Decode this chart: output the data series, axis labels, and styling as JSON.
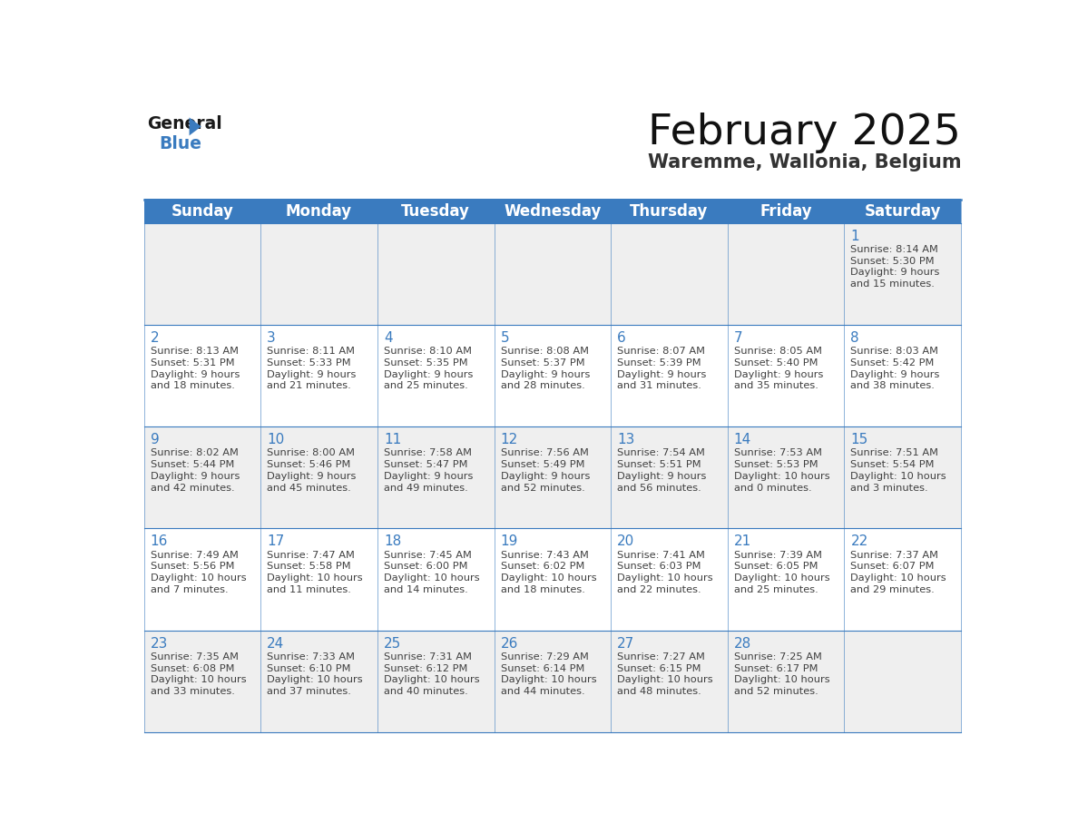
{
  "title": "February 2025",
  "subtitle": "Waremme, Wallonia, Belgium",
  "days_of_week": [
    "Sunday",
    "Monday",
    "Tuesday",
    "Wednesday",
    "Thursday",
    "Friday",
    "Saturday"
  ],
  "header_bg": "#3a7bbf",
  "header_text": "#ffffff",
  "cell_bg_odd": "#efefef",
  "cell_bg_even": "#ffffff",
  "border_color": "#3a7bbf",
  "day_number_color": "#3a7bbf",
  "text_color": "#404040",
  "title_color": "#111111",
  "subtitle_color": "#333333",
  "calendar": [
    [
      null,
      null,
      null,
      null,
      null,
      null,
      {
        "day": 1,
        "sunrise": "8:14 AM",
        "sunset": "5:30 PM",
        "daylight_hours": 9,
        "daylight_minutes": 15
      }
    ],
    [
      {
        "day": 2,
        "sunrise": "8:13 AM",
        "sunset": "5:31 PM",
        "daylight_hours": 9,
        "daylight_minutes": 18
      },
      {
        "day": 3,
        "sunrise": "8:11 AM",
        "sunset": "5:33 PM",
        "daylight_hours": 9,
        "daylight_minutes": 21
      },
      {
        "day": 4,
        "sunrise": "8:10 AM",
        "sunset": "5:35 PM",
        "daylight_hours": 9,
        "daylight_minutes": 25
      },
      {
        "day": 5,
        "sunrise": "8:08 AM",
        "sunset": "5:37 PM",
        "daylight_hours": 9,
        "daylight_minutes": 28
      },
      {
        "day": 6,
        "sunrise": "8:07 AM",
        "sunset": "5:39 PM",
        "daylight_hours": 9,
        "daylight_minutes": 31
      },
      {
        "day": 7,
        "sunrise": "8:05 AM",
        "sunset": "5:40 PM",
        "daylight_hours": 9,
        "daylight_minutes": 35
      },
      {
        "day": 8,
        "sunrise": "8:03 AM",
        "sunset": "5:42 PM",
        "daylight_hours": 9,
        "daylight_minutes": 38
      }
    ],
    [
      {
        "day": 9,
        "sunrise": "8:02 AM",
        "sunset": "5:44 PM",
        "daylight_hours": 9,
        "daylight_minutes": 42
      },
      {
        "day": 10,
        "sunrise": "8:00 AM",
        "sunset": "5:46 PM",
        "daylight_hours": 9,
        "daylight_minutes": 45
      },
      {
        "day": 11,
        "sunrise": "7:58 AM",
        "sunset": "5:47 PM",
        "daylight_hours": 9,
        "daylight_minutes": 49
      },
      {
        "day": 12,
        "sunrise": "7:56 AM",
        "sunset": "5:49 PM",
        "daylight_hours": 9,
        "daylight_minutes": 52
      },
      {
        "day": 13,
        "sunrise": "7:54 AM",
        "sunset": "5:51 PM",
        "daylight_hours": 9,
        "daylight_minutes": 56
      },
      {
        "day": 14,
        "sunrise": "7:53 AM",
        "sunset": "5:53 PM",
        "daylight_hours": 10,
        "daylight_minutes": 0
      },
      {
        "day": 15,
        "sunrise": "7:51 AM",
        "sunset": "5:54 PM",
        "daylight_hours": 10,
        "daylight_minutes": 3
      }
    ],
    [
      {
        "day": 16,
        "sunrise": "7:49 AM",
        "sunset": "5:56 PM",
        "daylight_hours": 10,
        "daylight_minutes": 7
      },
      {
        "day": 17,
        "sunrise": "7:47 AM",
        "sunset": "5:58 PM",
        "daylight_hours": 10,
        "daylight_minutes": 11
      },
      {
        "day": 18,
        "sunrise": "7:45 AM",
        "sunset": "6:00 PM",
        "daylight_hours": 10,
        "daylight_minutes": 14
      },
      {
        "day": 19,
        "sunrise": "7:43 AM",
        "sunset": "6:02 PM",
        "daylight_hours": 10,
        "daylight_minutes": 18
      },
      {
        "day": 20,
        "sunrise": "7:41 AM",
        "sunset": "6:03 PM",
        "daylight_hours": 10,
        "daylight_minutes": 22
      },
      {
        "day": 21,
        "sunrise": "7:39 AM",
        "sunset": "6:05 PM",
        "daylight_hours": 10,
        "daylight_minutes": 25
      },
      {
        "day": 22,
        "sunrise": "7:37 AM",
        "sunset": "6:07 PM",
        "daylight_hours": 10,
        "daylight_minutes": 29
      }
    ],
    [
      {
        "day": 23,
        "sunrise": "7:35 AM",
        "sunset": "6:08 PM",
        "daylight_hours": 10,
        "daylight_minutes": 33
      },
      {
        "day": 24,
        "sunrise": "7:33 AM",
        "sunset": "6:10 PM",
        "daylight_hours": 10,
        "daylight_minutes": 37
      },
      {
        "day": 25,
        "sunrise": "7:31 AM",
        "sunset": "6:12 PM",
        "daylight_hours": 10,
        "daylight_minutes": 40
      },
      {
        "day": 26,
        "sunrise": "7:29 AM",
        "sunset": "6:14 PM",
        "daylight_hours": 10,
        "daylight_minutes": 44
      },
      {
        "day": 27,
        "sunrise": "7:27 AM",
        "sunset": "6:15 PM",
        "daylight_hours": 10,
        "daylight_minutes": 48
      },
      {
        "day": 28,
        "sunrise": "7:25 AM",
        "sunset": "6:17 PM",
        "daylight_hours": 10,
        "daylight_minutes": 52
      },
      null
    ]
  ]
}
